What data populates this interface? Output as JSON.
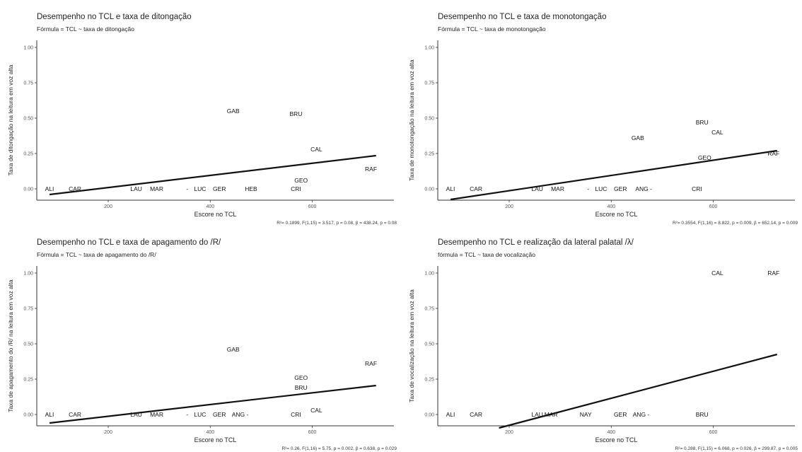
{
  "chart_data": [
    {
      "type": "scatter",
      "title": "Desempenho no TCL e taxa de ditongação",
      "subtitle": "Fórmula = TCL ~ taxa de ditongação",
      "xlabel": "Escore no TCL",
      "ylabel": "Taxa de ditongação na leitura em voz alta",
      "caption": "R²= 0.1899, F(1,15) = 3.517, p = 0.08, β = 438.24, p = 0.08",
      "xlim": [
        60,
        760
      ],
      "ylim": [
        -0.08,
        1.05
      ],
      "xticks": [
        "200",
        "400",
        "600"
      ],
      "yticks": [
        "0.00",
        "0.25",
        "0.50",
        "0.75",
        "1.00"
      ],
      "grid": false,
      "points": [
        {
          "label": "ALI",
          "x": 85,
          "y": 0.0
        },
        {
          "label": "CAR",
          "x": 135,
          "y": 0.0
        },
        {
          "label": "LAU",
          "x": 255,
          "y": 0.0
        },
        {
          "label": "MAR",
          "x": 295,
          "y": 0.0
        },
        {
          "label": "-",
          "x": 355,
          "y": 0.0
        },
        {
          "label": "LUC",
          "x": 380,
          "y": 0.0
        },
        {
          "label": "GER",
          "x": 418,
          "y": 0.0
        },
        {
          "label": "HEB",
          "x": 480,
          "y": 0.0
        },
        {
          "label": "CRI",
          "x": 568,
          "y": 0.0
        },
        {
          "label": "GEO",
          "x": 578,
          "y": 0.06
        },
        {
          "label": "GAB",
          "x": 445,
          "y": 0.55
        },
        {
          "label": "BRU",
          "x": 568,
          "y": 0.53
        },
        {
          "label": "CAL",
          "x": 608,
          "y": 0.28
        },
        {
          "label": "RAF",
          "x": 715,
          "y": 0.14
        }
      ],
      "fit_line": {
        "x": [
          85,
          725
        ],
        "y": [
          -0.04,
          0.235
        ]
      }
    },
    {
      "type": "scatter",
      "title": "Desempenho no TCL e taxa de monotongação",
      "subtitle": "Fórmula = TCL ~ taxa de monotongação",
      "xlabel": "Escore no TCL",
      "ylabel": "Taxa de monotongação na leitura em voz alta",
      "caption": "R²= 0.3554, F(1,16) = 8.822, p = 0.009, β = 652.14, p = 0.009",
      "xlim": [
        60,
        760
      ],
      "ylim": [
        -0.08,
        1.05
      ],
      "xticks": [
        "200",
        "400",
        "600"
      ],
      "yticks": [
        "0.00",
        "0.25",
        "0.50",
        "0.75",
        "1.00"
      ],
      "grid": false,
      "points": [
        {
          "label": "ALI",
          "x": 85,
          "y": 0.0
        },
        {
          "label": "CAR",
          "x": 135,
          "y": 0.0
        },
        {
          "label": "LAU",
          "x": 255,
          "y": 0.0
        },
        {
          "label": "MAR",
          "x": 295,
          "y": 0.0
        },
        {
          "label": "-",
          "x": 355,
          "y": 0.0
        },
        {
          "label": "LUC",
          "x": 380,
          "y": 0.0
        },
        {
          "label": "GER",
          "x": 418,
          "y": 0.0
        },
        {
          "label": "ANG",
          "x": 460,
          "y": 0.0
        },
        {
          "label": "-",
          "x": 478,
          "y": 0.0
        },
        {
          "label": "CRI",
          "x": 568,
          "y": 0.0
        },
        {
          "label": "GAB",
          "x": 452,
          "y": 0.36
        },
        {
          "label": "BRU",
          "x": 578,
          "y": 0.47
        },
        {
          "label": "CAL",
          "x": 608,
          "y": 0.4
        },
        {
          "label": "GEO",
          "x": 583,
          "y": 0.22
        },
        {
          "label": "RAF",
          "x": 718,
          "y": 0.25
        }
      ],
      "fit_line": {
        "x": [
          85,
          725
        ],
        "y": [
          -0.075,
          0.27
        ]
      }
    },
    {
      "type": "scatter",
      "title": "Desempenho no TCL e taxa de apagamento do /R/",
      "subtitle": "Fórmula = TCL ~ taxa de apagamento do /R/",
      "xlabel": "Escore no TCL",
      "ylabel": "Taxa de apagamento do /R/ na leitura em voz alta",
      "caption": "R²= 0.26, F(1,16) = 5.75, p = 0.002, β = 0.638, p = 0.029",
      "xlim": [
        60,
        760
      ],
      "ylim": [
        -0.08,
        1.05
      ],
      "xticks": [
        "200",
        "400",
        "600"
      ],
      "yticks": [
        "0.00",
        "0.25",
        "0.50",
        "0.75",
        "1.00"
      ],
      "grid": false,
      "points": [
        {
          "label": "ALI",
          "x": 85,
          "y": 0.0
        },
        {
          "label": "CAR",
          "x": 135,
          "y": 0.0
        },
        {
          "label": "LAU",
          "x": 255,
          "y": 0.0
        },
        {
          "label": "MAR",
          "x": 295,
          "y": 0.0
        },
        {
          "label": "-",
          "x": 355,
          "y": 0.0
        },
        {
          "label": "LUC",
          "x": 380,
          "y": 0.0
        },
        {
          "label": "GER",
          "x": 418,
          "y": 0.0
        },
        {
          "label": "ANG",
          "x": 455,
          "y": 0.0
        },
        {
          "label": "-",
          "x": 473,
          "y": 0.0
        },
        {
          "label": "CRI",
          "x": 568,
          "y": 0.0
        },
        {
          "label": "CAL",
          "x": 608,
          "y": 0.03
        },
        {
          "label": "GAB",
          "x": 445,
          "y": 0.46
        },
        {
          "label": "GEO",
          "x": 578,
          "y": 0.26
        },
        {
          "label": "BRU",
          "x": 578,
          "y": 0.19
        },
        {
          "label": "RAF",
          "x": 715,
          "y": 0.36
        }
      ],
      "fit_line": {
        "x": [
          85,
          725
        ],
        "y": [
          -0.06,
          0.205
        ]
      }
    },
    {
      "type": "scatter",
      "title": "Desempenho no TCL e realização da lateral palatal /λ/",
      "subtitle": "fórmula = TCL ~ taxa de vocalização",
      "xlabel": "Escore no TCL",
      "ylabel": "Taxa de vocalização na leitura em voz alta",
      "caption": "R²= 0.288, F(1,15) = 6.068, p = 0.026, β = 299.87, p = 0.005",
      "xlim": [
        60,
        760
      ],
      "ylim": [
        -0.08,
        1.05
      ],
      "xticks": [
        "200",
        "400",
        "600"
      ],
      "yticks": [
        "0.00",
        "0.25",
        "0.50",
        "0.75",
        "1.00"
      ],
      "grid": false,
      "points": [
        {
          "label": "ALI",
          "x": 85,
          "y": 0.0
        },
        {
          "label": "CAR",
          "x": 135,
          "y": 0.0
        },
        {
          "label": "LAU",
          "x": 255,
          "y": 0.0
        },
        {
          "label": "MAR",
          "x": 282,
          "y": 0.0
        },
        {
          "label": "NAY",
          "x": 350,
          "y": 0.0
        },
        {
          "label": "GER",
          "x": 418,
          "y": 0.0
        },
        {
          "label": "ANG",
          "x": 455,
          "y": 0.0
        },
        {
          "label": "-",
          "x": 473,
          "y": 0.0
        },
        {
          "label": "BRU",
          "x": 578,
          "y": 0.0
        },
        {
          "label": "CAL",
          "x": 608,
          "y": 1.0
        },
        {
          "label": "RAF",
          "x": 718,
          "y": 1.0
        }
      ],
      "fit_line": {
        "x": [
          180,
          725
        ],
        "y": [
          -0.095,
          0.425
        ]
      }
    }
  ]
}
